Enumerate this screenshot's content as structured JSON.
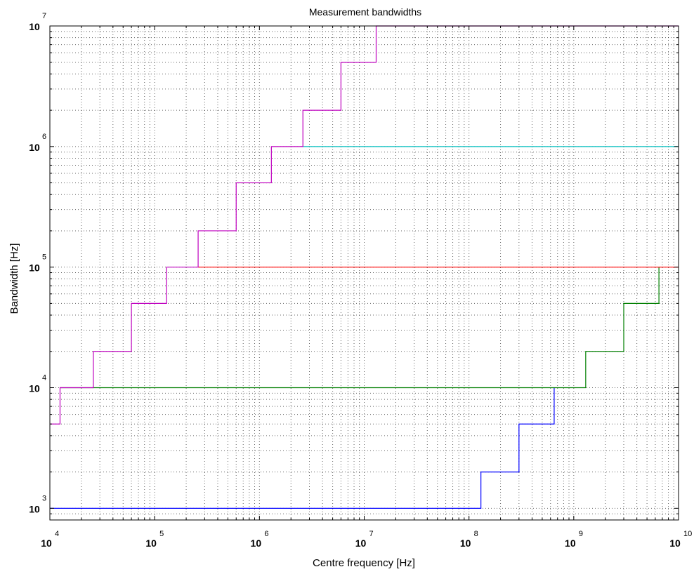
{
  "chart_data": {
    "type": "line",
    "title": "Measurement bandwidths",
    "xlabel": "Centre frequency [Hz]",
    "ylabel": "Bandwidth [Hz]",
    "xscale": "log",
    "yscale": "log",
    "xlim": [
      10000,
      10000000000
    ],
    "ylim": [
      800,
      10000000
    ],
    "grid": true,
    "x_ticks": [
      {
        "base": "10",
        "exp": "4",
        "value": 10000
      },
      {
        "base": "10",
        "exp": "5",
        "value": 100000
      },
      {
        "base": "10",
        "exp": "6",
        "value": 1000000
      },
      {
        "base": "10",
        "exp": "7",
        "value": 10000000
      },
      {
        "base": "10",
        "exp": "8",
        "value": 100000000
      },
      {
        "base": "10",
        "exp": "9",
        "value": 1000000000
      },
      {
        "base": "10",
        "exp": "10",
        "value": 10000000000
      }
    ],
    "y_ticks": [
      {
        "base": "10",
        "exp": "3",
        "value": 1000
      },
      {
        "base": "10",
        "exp": "4",
        "value": 10000
      },
      {
        "base": "10",
        "exp": "5",
        "value": 100000
      },
      {
        "base": "10",
        "exp": "6",
        "value": 1000000
      },
      {
        "base": "10",
        "exp": "7",
        "value": 10000000
      }
    ],
    "series": [
      {
        "color": "#0000ff",
        "x": [
          10000,
          130000000,
          130000000,
          300000000,
          300000000,
          650000000,
          650000000
        ],
        "y": [
          1000,
          1000,
          2000,
          2000,
          5000,
          5000,
          10000
        ]
      },
      {
        "color": "#007f00",
        "x": [
          12500,
          1300000000,
          1300000000,
          3000000000,
          3000000000,
          6500000000,
          6500000000
        ],
        "y": [
          10000,
          10000,
          20000,
          20000,
          50000,
          50000,
          100000
        ]
      },
      {
        "color": "#ff0000",
        "x": [
          260000,
          10000000000
        ],
        "y": [
          100000,
          100000
        ]
      },
      {
        "color": "#00bfbf",
        "x": [
          2500000,
          10000000000
        ],
        "y": [
          1000000,
          1000000
        ]
      },
      {
        "color": "#bf00bf",
        "x": [
          10000,
          12500,
          12500,
          26000,
          26000,
          60000,
          60000,
          130000,
          130000,
          260000,
          260000,
          600000,
          600000,
          1300000,
          1300000,
          2600000,
          2600000,
          6000000,
          6000000,
          13000000,
          13000000,
          10000000000
        ],
        "y": [
          5000,
          5000,
          10000,
          10000,
          20000,
          20000,
          50000,
          50000,
          100000,
          100000,
          200000,
          200000,
          500000,
          500000,
          1000000,
          1000000,
          2000000,
          2000000,
          5000000,
          5000000,
          10000000,
          10000000
        ]
      }
    ]
  }
}
